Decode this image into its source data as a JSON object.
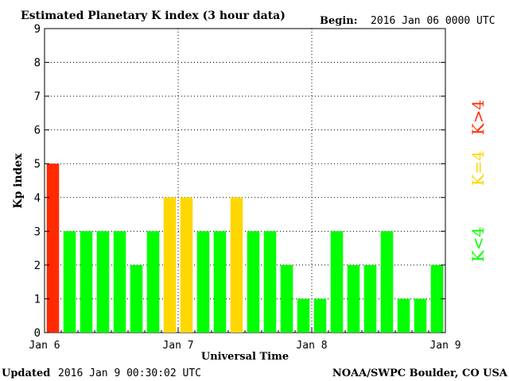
{
  "header": {
    "title": "Estimated Planetary K index (3 hour data)",
    "begin_label": "Begin:",
    "begin_value": "2016 Jan 06 0000 UTC"
  },
  "footer": {
    "updated_label": "Updated",
    "updated_value": "2016 Jan  9 00:30:02 UTC",
    "source": "NOAA/SWPC Boulder, CO USA"
  },
  "legend": {
    "items": [
      {
        "label": "K<4",
        "color": "#00ff00"
      },
      {
        "label": "K=4",
        "color": "#ffd700"
      },
      {
        "label": "K>4",
        "color": "#ff2a00"
      }
    ]
  },
  "chart_data": {
    "type": "bar",
    "title": "Estimated Planetary K index (3 hour data)",
    "xlabel": "Universal Time",
    "ylabel": "Kp index",
    "ylim": [
      0,
      9
    ],
    "yticks": [
      0,
      1,
      2,
      3,
      4,
      5,
      6,
      7,
      8,
      9
    ],
    "xticks": [
      "Jan 6",
      "Jan 7",
      "Jan 8",
      "Jan 9"
    ],
    "grid": true,
    "legend_position": "right",
    "colors": {
      "below": "#00ff00",
      "equal": "#ffd700",
      "above": "#ff2a00"
    },
    "values": [
      5,
      3,
      3,
      3,
      3,
      2,
      3,
      4,
      4,
      3,
      3,
      4,
      3,
      3,
      2,
      1,
      1,
      3,
      2,
      2,
      3,
      1,
      1,
      2
    ]
  }
}
